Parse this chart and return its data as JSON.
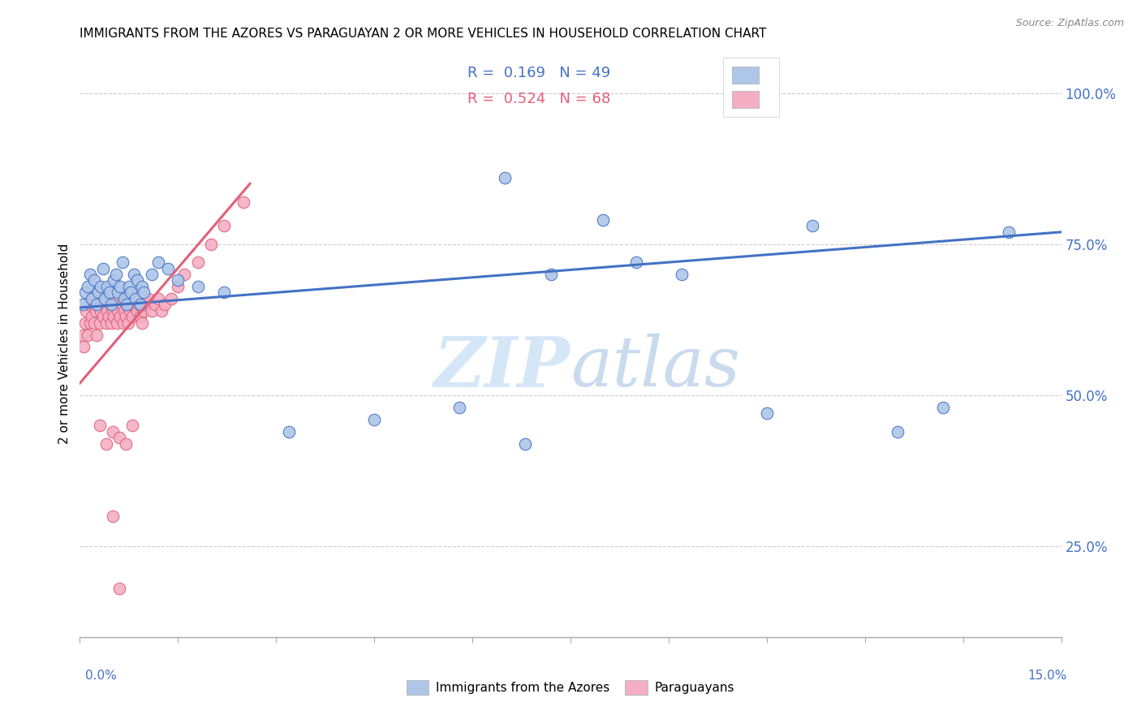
{
  "title": "IMMIGRANTS FROM THE AZORES VS PARAGUAYAN 2 OR MORE VEHICLES IN HOUSEHOLD CORRELATION CHART",
  "source": "Source: ZipAtlas.com",
  "ylabel_ticks": [
    25.0,
    50.0,
    75.0,
    100.0
  ],
  "ylabel_labels": [
    "25.0%",
    "50.0%",
    "75.0%",
    "100.0%"
  ],
  "xmin": 0.0,
  "xmax": 15.0,
  "ymin": 10.0,
  "ymax": 107.0,
  "legend1_R": "0.169",
  "legend1_N": "49",
  "legend2_R": "0.524",
  "legend2_N": "68",
  "color_azores": "#aec6e8",
  "color_paraguayan": "#f4afc4",
  "color_line_azores": "#4472c4",
  "color_line_paraguayan": "#e0607a",
  "color_text_blue": "#4472c4",
  "watermark_zip": "ZIP",
  "watermark_atlas": "atlas",
  "legend_label1": "Immigrants from the Azores",
  "legend_label2": "Paraguayans",
  "azores_x": [
    0.05,
    0.08,
    0.12,
    0.15,
    0.18,
    0.22,
    0.25,
    0.28,
    0.32,
    0.35,
    0.38,
    0.42,
    0.45,
    0.48,
    0.52,
    0.55,
    0.58,
    0.62,
    0.65,
    0.68,
    0.72,
    0.75,
    0.78,
    0.82,
    0.85,
    0.88,
    0.92,
    0.95,
    0.98,
    1.1,
    1.2,
    1.35,
    1.5,
    1.8,
    2.2,
    3.2,
    4.5,
    5.8,
    6.8,
    7.2,
    8.5,
    9.2,
    10.5,
    11.2,
    12.5,
    13.2,
    6.5,
    8.0,
    14.2
  ],
  "azores_y": [
    65,
    67,
    68,
    70,
    66,
    69,
    65,
    67,
    68,
    71,
    66,
    68,
    67,
    65,
    69,
    70,
    67,
    68,
    72,
    66,
    65,
    68,
    67,
    70,
    66,
    69,
    65,
    68,
    67,
    70,
    72,
    71,
    69,
    68,
    67,
    44,
    46,
    48,
    42,
    70,
    72,
    70,
    47,
    78,
    44,
    48,
    86,
    79,
    77
  ],
  "paraguayan_x": [
    0.04,
    0.06,
    0.08,
    0.1,
    0.12,
    0.14,
    0.16,
    0.18,
    0.2,
    0.22,
    0.24,
    0.26,
    0.28,
    0.3,
    0.32,
    0.34,
    0.36,
    0.38,
    0.4,
    0.42,
    0.44,
    0.46,
    0.48,
    0.5,
    0.52,
    0.54,
    0.56,
    0.58,
    0.6,
    0.62,
    0.64,
    0.66,
    0.68,
    0.7,
    0.72,
    0.74,
    0.76,
    0.78,
    0.8,
    0.82,
    0.85,
    0.88,
    0.9,
    0.92,
    0.95,
    0.98,
    1.0,
    1.05,
    1.1,
    1.15,
    1.2,
    1.25,
    1.3,
    1.4,
    1.5,
    1.6,
    1.8,
    2.0,
    2.2,
    2.5,
    0.3,
    0.4,
    0.5,
    0.6,
    0.7,
    0.8,
    0.5,
    0.6
  ],
  "paraguayan_y": [
    60,
    58,
    62,
    64,
    60,
    65,
    62,
    63,
    65,
    62,
    64,
    60,
    65,
    62,
    64,
    66,
    63,
    65,
    62,
    64,
    63,
    65,
    62,
    64,
    63,
    65,
    62,
    64,
    66,
    63,
    65,
    62,
    64,
    63,
    65,
    62,
    64,
    65,
    63,
    65,
    66,
    64,
    65,
    63,
    62,
    64,
    65,
    66,
    64,
    65,
    66,
    64,
    65,
    66,
    68,
    70,
    72,
    75,
    78,
    82,
    45,
    42,
    44,
    43,
    42,
    45,
    30,
    18
  ],
  "az_line_x": [
    0.0,
    15.0
  ],
  "az_line_y": [
    64.5,
    77.0
  ],
  "par_line_x": [
    0.0,
    2.6
  ],
  "par_line_y": [
    52.0,
    85.0
  ]
}
